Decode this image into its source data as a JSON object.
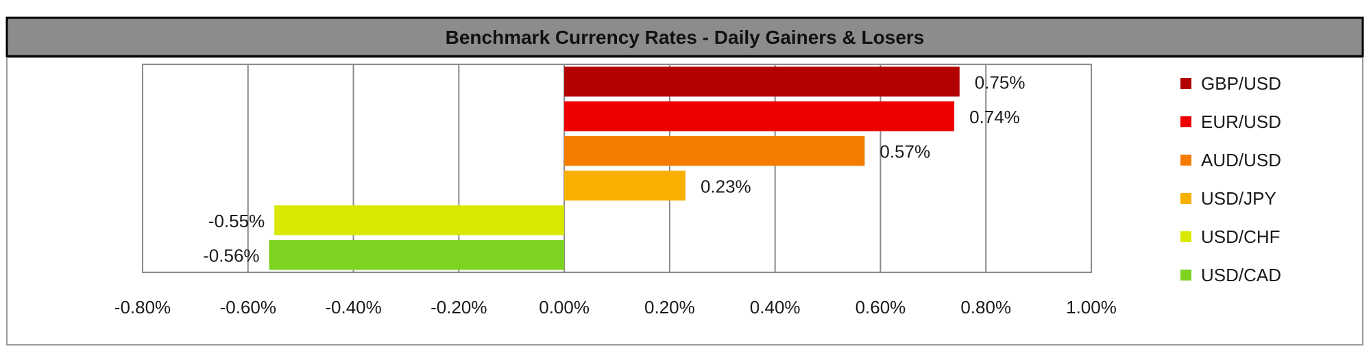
{
  "chart_data": {
    "type": "bar",
    "orientation": "horizontal",
    "title": "Benchmark Currency Rates - Daily Gainers & Losers",
    "categories": [
      "GBP/USD",
      "EUR/USD",
      "AUD/USD",
      "USD/JPY",
      "USD/CHF",
      "USD/CAD"
    ],
    "values": [
      0.75,
      0.74,
      0.57,
      0.23,
      -0.55,
      -0.56
    ],
    "data_labels": [
      "0.75%",
      "0.74%",
      "0.57%",
      "0.23%",
      "-0.55%",
      "-0.56%"
    ],
    "colors": [
      "#b30000",
      "#ee0000",
      "#f57c00",
      "#f8b000",
      "#d8e800",
      "#7ed321"
    ],
    "xlim": [
      -0.8,
      1.0
    ],
    "x_ticks": [
      -0.8,
      -0.6,
      -0.4,
      -0.2,
      0.0,
      0.2,
      0.4,
      0.6,
      0.8,
      1.0
    ],
    "x_tick_labels": [
      "-0.80%",
      "-0.60%",
      "-0.40%",
      "-0.20%",
      "0.00%",
      "0.20%",
      "0.40%",
      "0.60%",
      "0.80%",
      "1.00%"
    ],
    "xlabel": "",
    "ylabel": "",
    "grid": true,
    "legend": "right",
    "title_bar_color": "#8c8c8c"
  }
}
